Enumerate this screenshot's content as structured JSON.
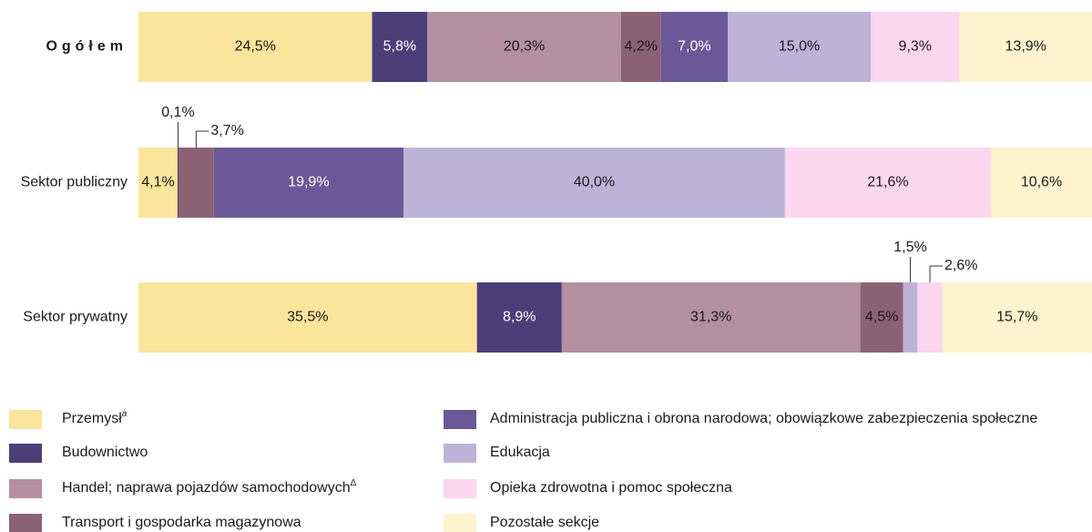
{
  "chart_data": {
    "type": "stacked-bar-horizontal",
    "categories": [
      "Ogółem",
      "Sektor publiczny",
      "Sektor prywatny"
    ],
    "series": [
      {
        "name": "Przemysł",
        "superscript": "a",
        "color": "#fbe49b",
        "values": [
          24.5,
          4.1,
          35.5
        ],
        "value_labels": [
          "24,5%",
          "4,1%",
          "35,5%"
        ]
      },
      {
        "name": "Budownictwo",
        "color": "#4b3f7a",
        "values": [
          5.8,
          0.1,
          8.9
        ],
        "value_labels": [
          "5,8%",
          "0,1%",
          "8,9%"
        ]
      },
      {
        "name": "Handel; naprawa pojazdów samochodowych",
        "superscript": "Δ",
        "color": "#b48fa0",
        "values": [
          20.3,
          null,
          31.3
        ],
        "value_labels": [
          "20,3%",
          null,
          "31,3%"
        ]
      },
      {
        "name": "Transport i gospodarka magazynowa",
        "color": "#8b6274",
        "values": [
          4.2,
          3.7,
          4.5
        ],
        "value_labels": [
          "4,2%",
          "3,7%",
          "4,5%"
        ]
      },
      {
        "name": "Administracja publiczna i obrona narodowa; obowiązkowe zabezpieczenia społeczne",
        "color": "#6a5996",
        "values": [
          7.0,
          19.9,
          null
        ],
        "value_labels": [
          "7,0%",
          "19,9%",
          null
        ]
      },
      {
        "name": "Edukacja",
        "color": "#bcb3d9",
        "values": [
          15.0,
          40.0,
          1.5
        ],
        "value_labels": [
          "15,0%",
          "40,0%",
          "1,5%"
        ]
      },
      {
        "name": "Opieka zdrowotna i pomoc społeczna",
        "color": "#fcd5ef",
        "values": [
          9.3,
          21.6,
          2.6
        ],
        "value_labels": [
          "9,3%",
          "21,6%",
          "2,6%"
        ]
      },
      {
        "name": "Pozostałe sekcje",
        "color": "#fdf3cf",
        "values": [
          13.9,
          10.6,
          15.7
        ],
        "value_labels": [
          "13,9%",
          "10,6%",
          "15,7%"
        ]
      }
    ],
    "xlim": [
      0,
      100
    ]
  }
}
